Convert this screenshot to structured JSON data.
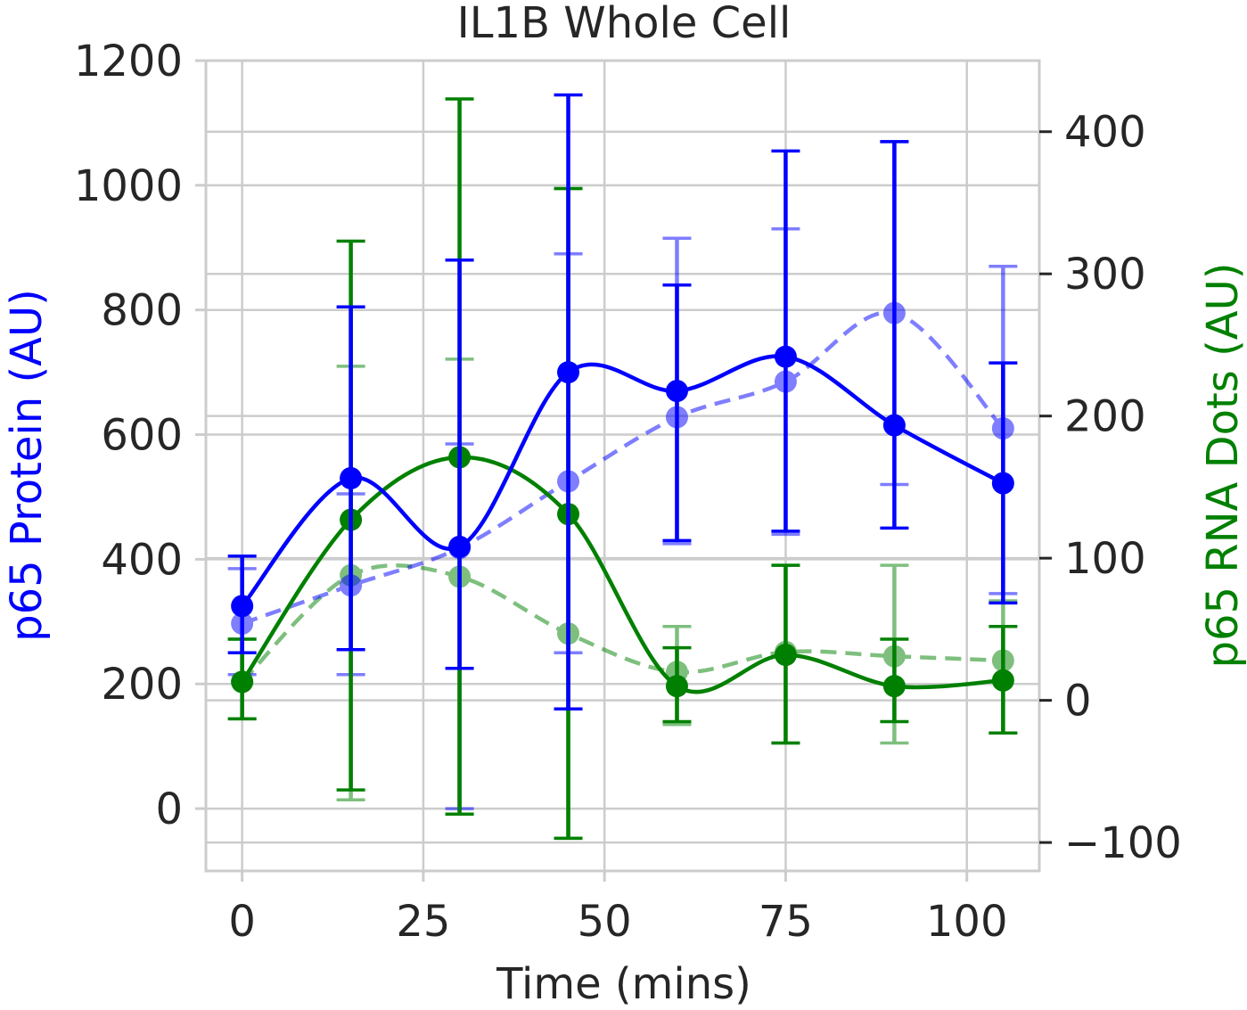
{
  "chart_data": {
    "type": "line",
    "title": "IL1B Whole Cell",
    "xlabel": "Time (mins)",
    "ylabel_left": "p65 Protein (AU)",
    "ylabel_right": "p65 RNA Dots (AU)",
    "xlim": [
      -5,
      110
    ],
    "ylim_left": [
      -100,
      1200
    ],
    "ylim_right": [
      -120,
      450
    ],
    "x_ticks": [
      0,
      25,
      50,
      75,
      100
    ],
    "x_tick_labels": [
      "0",
      "25",
      "50",
      "75",
      "100"
    ],
    "y_left_ticks": [
      0,
      200,
      400,
      600,
      800,
      1000,
      1200
    ],
    "y_left_tick_labels": [
      "0",
      "200",
      "400",
      "600",
      "800",
      "1000",
      "1200"
    ],
    "y_right_ticks": [
      -100,
      0,
      100,
      200,
      300,
      400
    ],
    "y_right_tick_labels": [
      "−100",
      "0",
      "100",
      "200",
      "300",
      "400"
    ],
    "grid": true,
    "colors": {
      "protein": "#0000ff",
      "rna": "#008000",
      "grid": "#cccccc",
      "text": "#262626"
    },
    "x": [
      0,
      15,
      30,
      45,
      60,
      75,
      90,
      105
    ],
    "series": [
      {
        "name": "p65 Protein (solid)",
        "axis": "left",
        "color": "#0000ff",
        "style": "solid",
        "alpha": 1.0,
        "values": [
          325,
          530,
          420,
          700,
          670,
          725,
          615,
          522
        ],
        "err_low": [
          250,
          255,
          225,
          160,
          430,
          445,
          450,
          330
        ],
        "err_high": [
          405,
          805,
          880,
          1145,
          840,
          1055,
          1070,
          715
        ]
      },
      {
        "name": "p65 Protein (dashed)",
        "axis": "left",
        "color": "#0000ff",
        "style": "dashed",
        "alpha": 0.5,
        "values": [
          297,
          358,
          418,
          525,
          628,
          685,
          795,
          610
        ],
        "err_low": [
          215,
          215,
          0,
          250,
          425,
          440,
          520,
          345
        ],
        "err_high": [
          385,
          505,
          585,
          890,
          915,
          930,
          1070,
          870
        ]
      },
      {
        "name": "p65 RNA Dots (solid)",
        "axis": "right",
        "color": "#008000",
        "style": "solid",
        "alpha": 1.0,
        "values": [
          13,
          127,
          171,
          131,
          10,
          32,
          10,
          14
        ],
        "err_low": [
          -13,
          -63,
          -80,
          -97,
          -15,
          -30,
          -15,
          -23
        ],
        "err_high": [
          43,
          323,
          423,
          360,
          37,
          95,
          43,
          52
        ]
      },
      {
        "name": "p65 RNA Dots (dashed)",
        "axis": "right",
        "color": "#008000",
        "style": "dashed",
        "alpha": 0.5,
        "values": [
          13,
          88,
          87,
          47,
          20,
          34,
          31,
          28
        ],
        "err_low": [
          -13,
          -70,
          -80,
          -97,
          -17,
          -30,
          -30,
          -23
        ],
        "err_high": [
          43,
          235,
          240,
          360,
          52,
          95,
          95,
          70
        ]
      }
    ]
  }
}
